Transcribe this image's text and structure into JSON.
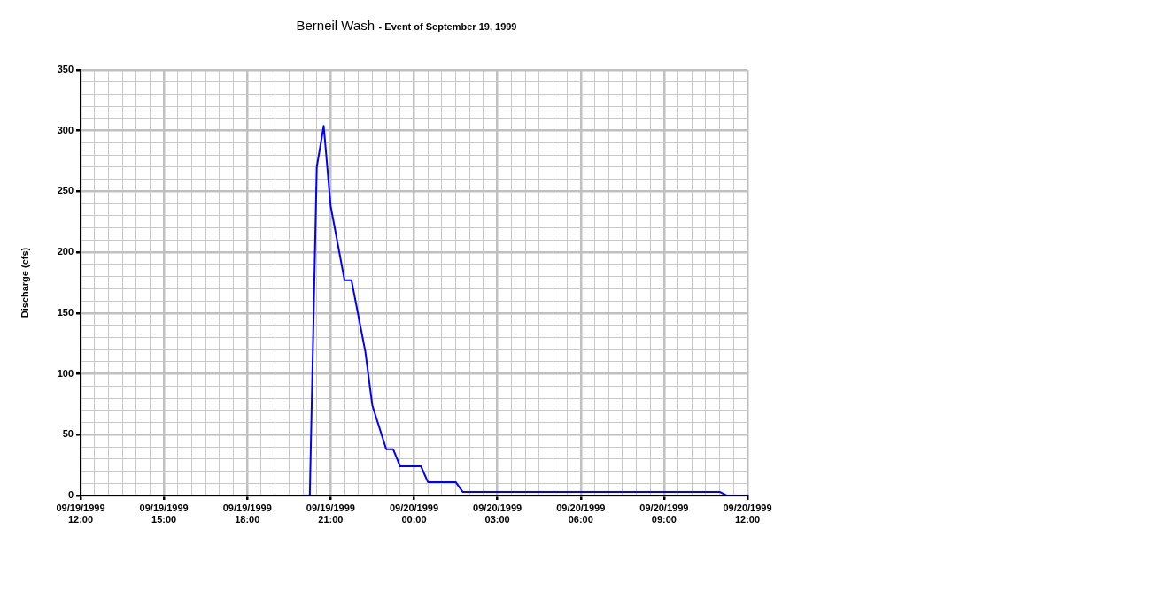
{
  "chart_data": {
    "type": "line",
    "title": "Berneil Wash",
    "subtitle": "- Event of September 19, 1999",
    "ylabel": "Discharge (cfs)",
    "x": [
      "1999-09-19T20:00",
      "1999-09-19T20:15",
      "1999-09-19T20:30",
      "1999-09-19T20:45",
      "1999-09-19T21:00",
      "1999-09-19T21:30",
      "1999-09-19T21:45",
      "1999-09-19T22:15",
      "1999-09-19T22:30",
      "1999-09-19T23:00",
      "1999-09-19T23:15",
      "1999-09-19T23:30",
      "1999-09-20T00:15",
      "1999-09-20T00:30",
      "1999-09-20T01:30",
      "1999-09-20T01:45",
      "1999-09-20T11:00",
      "1999-09-20T11:15",
      "1999-09-20T12:00"
    ],
    "series": [
      {
        "color": "#0000ff",
        "values": [
          0,
          0,
          270,
          304,
          238,
          177,
          177,
          118,
          74,
          38,
          38,
          24,
          24,
          11,
          11,
          3,
          3,
          0,
          0
        ]
      }
    ],
    "xlim": [
      "1999-09-19T12:00",
      "1999-09-20T12:00"
    ],
    "xticks": [
      {
        "value": "1999-09-19T12:00",
        "label": "09/19/1999 12:00"
      },
      {
        "value": "1999-09-19T12:30",
        "label": null
      },
      {
        "value": "1999-09-19T13:00",
        "label": null
      },
      {
        "value": "1999-09-19T13:30",
        "label": null
      },
      {
        "value": "1999-09-19T14:00",
        "label": null
      },
      {
        "value": "1999-09-19T14:30",
        "label": null
      },
      {
        "value": "1999-09-19T15:00",
        "label": "09/19/1999 15:00"
      },
      {
        "value": "1999-09-19T15:30",
        "label": null
      },
      {
        "value": "1999-09-19T16:00",
        "label": null
      },
      {
        "value": "1999-09-19T16:30",
        "label": null
      },
      {
        "value": "1999-09-19T17:00",
        "label": null
      },
      {
        "value": "1999-09-19T17:30",
        "label": null
      },
      {
        "value": "1999-09-19T18:00",
        "label": "09/19/1999 18:00"
      },
      {
        "value": "1999-09-19T18:30",
        "label": null
      },
      {
        "value": "1999-09-19T19:00",
        "label": null
      },
      {
        "value": "1999-09-19T19:30",
        "label": null
      },
      {
        "value": "1999-09-19T20:00",
        "label": null
      },
      {
        "value": "1999-09-19T20:30",
        "label": null
      },
      {
        "value": "1999-09-19T21:00",
        "label": "09/19/1999 21:00"
      },
      {
        "value": "1999-09-19T21:30",
        "label": null
      },
      {
        "value": "1999-09-19T22:00",
        "label": null
      },
      {
        "value": "1999-09-19T22:30",
        "label": null
      },
      {
        "value": "1999-09-19T23:00",
        "label": null
      },
      {
        "value": "1999-09-19T23:30",
        "label": null
      },
      {
        "value": "1999-09-20T00:00",
        "label": "09/20/1999 00:00"
      },
      {
        "value": "1999-09-20T00:30",
        "label": null
      },
      {
        "value": "1999-09-20T01:00",
        "label": null
      },
      {
        "value": "1999-09-20T01:30",
        "label": null
      },
      {
        "value": "1999-09-20T02:00",
        "label": null
      },
      {
        "value": "1999-09-20T02:30",
        "label": null
      },
      {
        "value": "1999-09-20T03:00",
        "label": "09/20/1999 03:00"
      },
      {
        "value": "1999-09-20T03:30",
        "label": null
      },
      {
        "value": "1999-09-20T04:00",
        "label": null
      },
      {
        "value": "1999-09-20T04:30",
        "label": null
      },
      {
        "value": "1999-09-20T05:00",
        "label": null
      },
      {
        "value": "1999-09-20T05:30",
        "label": null
      },
      {
        "value": "1999-09-20T06:00",
        "label": "09/20/1999 06:00"
      },
      {
        "value": "1999-09-20T06:30",
        "label": null
      },
      {
        "value": "1999-09-20T07:00",
        "label": null
      },
      {
        "value": "1999-09-20T07:30",
        "label": null
      },
      {
        "value": "1999-09-20T08:00",
        "label": null
      },
      {
        "value": "1999-09-20T08:30",
        "label": null
      },
      {
        "value": "1999-09-20T09:00",
        "label": "09/20/1999 09:00"
      },
      {
        "value": "1999-09-20T09:30",
        "label": null
      },
      {
        "value": "1999-09-20T10:00",
        "label": null
      },
      {
        "value": "1999-09-20T10:30",
        "label": null
      },
      {
        "value": "1999-09-20T11:00",
        "label": null
      },
      {
        "value": "1999-09-20T11:30",
        "label": null
      },
      {
        "value": "1999-09-20T12:00",
        "label": "09/20/1999 12:00"
      }
    ],
    "ylim": [
      0,
      350
    ],
    "yticks": [
      0,
      {
        "value": 10,
        "label": null
      },
      {
        "value": 20,
        "label": null
      },
      {
        "value": 30,
        "label": null
      },
      {
        "value": 40,
        "label": null
      },
      50,
      {
        "value": 60,
        "label": null
      },
      {
        "value": 70,
        "label": null
      },
      {
        "value": 80,
        "label": null
      },
      {
        "value": 90,
        "label": null
      },
      100,
      {
        "value": 110,
        "label": null
      },
      {
        "value": 120,
        "label": null
      },
      {
        "value": 130,
        "label": null
      },
      {
        "value": 140,
        "label": null
      },
      150,
      {
        "value": 160,
        "label": null
      },
      {
        "value": 170,
        "label": null
      },
      {
        "value": 180,
        "label": null
      },
      {
        "value": 190,
        "label": null
      },
      200,
      {
        "value": 210,
        "label": null
      },
      {
        "value": 220,
        "label": null
      },
      {
        "value": 230,
        "label": null
      },
      {
        "value": 240,
        "label": null
      },
      250,
      {
        "value": 260,
        "label": null
      },
      {
        "value": 270,
        "label": null
      },
      {
        "value": 280,
        "label": null
      },
      {
        "value": 290,
        "label": null
      },
      300,
      {
        "value": 310,
        "label": null
      },
      {
        "value": 320,
        "label": null
      },
      {
        "value": 330,
        "label": null
      },
      {
        "value": 340,
        "label": null
      },
      350
    ],
    "grid": true,
    "marker": "none",
    "line_style": "solid"
  }
}
